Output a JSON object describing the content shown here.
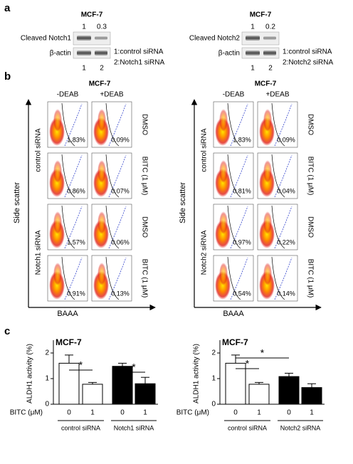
{
  "panel_a": {
    "label": "a",
    "blots": [
      {
        "title": "MCF-7",
        "ratios": [
          "1",
          "0.3"
        ],
        "bands": [
          "Cleaved Notch1",
          "β-actin"
        ],
        "legend": [
          "1:control siRNA",
          "2:Notch1 siRNA"
        ],
        "lanes": [
          "1",
          "2"
        ]
      },
      {
        "title": "MCF-7",
        "ratios": [
          "1",
          "0.2"
        ],
        "bands": [
          "Cleaved Notch2",
          "β-actin"
        ],
        "legend": [
          "1:control siRNA",
          "2:Notch2 siRNA"
        ],
        "lanes": [
          "1",
          "2"
        ]
      }
    ]
  },
  "panel_b": {
    "label": "b",
    "sets": [
      {
        "title": "MCF-7",
        "columns": [
          "-DEAB",
          "+DEAB"
        ],
        "y_axis": "Side scatter",
        "x_axis": "BAAA",
        "groups": [
          "control siRNA",
          "Notch1 siRNA"
        ],
        "rows": [
          "DMSO",
          "BITC (1 μM)",
          "DMSO",
          "BITC (1 μM)"
        ],
        "percentages": [
          [
            "1.83%",
            "0.09%"
          ],
          [
            "0.86%",
            "0.07%"
          ],
          [
            "1.57%",
            "0.06%"
          ],
          [
            "0.91%",
            "0.13%"
          ]
        ]
      },
      {
        "title": "MCF-7",
        "columns": [
          "-DEAB",
          "+DEAB"
        ],
        "y_axis": "Side scatter",
        "x_axis": "BAAA",
        "groups": [
          "control siRNA",
          "Notch2 siRNA"
        ],
        "rows": [
          "DMSO",
          "BITC (1 μM)",
          "DMSO",
          "BITC (1 μM)"
        ],
        "percentages": [
          [
            "1.83%",
            "0.09%"
          ],
          [
            "0.81%",
            "0.04%"
          ],
          [
            "0.97%",
            "0.22%"
          ],
          [
            "0.54%",
            "0.14%"
          ]
        ]
      }
    ]
  },
  "panel_c_label": "c",
  "chart_data": [
    {
      "type": "bar",
      "title": "MCF-7",
      "y_label": "ALDH1 activity (%)",
      "x_label": "BITC (μM)",
      "categories": [
        "0",
        "1",
        "0",
        "1"
      ],
      "values": [
        1.6,
        0.78,
        1.48,
        0.8
      ],
      "errors": [
        0.32,
        0.07,
        0.12,
        0.25
      ],
      "colors": [
        "#ffffff",
        "#ffffff",
        "#000000",
        "#000000"
      ],
      "groups": [
        "control siRNA",
        "Notch1 siRNA"
      ],
      "significance": [
        "*",
        "*"
      ],
      "ylim": [
        0,
        2.5
      ],
      "yticks": [
        0,
        1,
        2
      ]
    },
    {
      "type": "bar",
      "title": "MCF-7",
      "y_label": "ALDH1 activity (%)",
      "x_label": "BITC (μM)",
      "categories": [
        "0",
        "1",
        "0",
        "1"
      ],
      "values": [
        1.6,
        0.78,
        1.08,
        0.65
      ],
      "errors": [
        0.32,
        0.07,
        0.13,
        0.15
      ],
      "colors": [
        "#ffffff",
        "#ffffff",
        "#000000",
        "#000000"
      ],
      "groups": [
        "control siRNA",
        "Notch2 siRNA"
      ],
      "significance": [
        "*",
        "*"
      ],
      "ylim": [
        0,
        2.5
      ],
      "yticks": [
        0,
        1,
        2
      ]
    }
  ]
}
